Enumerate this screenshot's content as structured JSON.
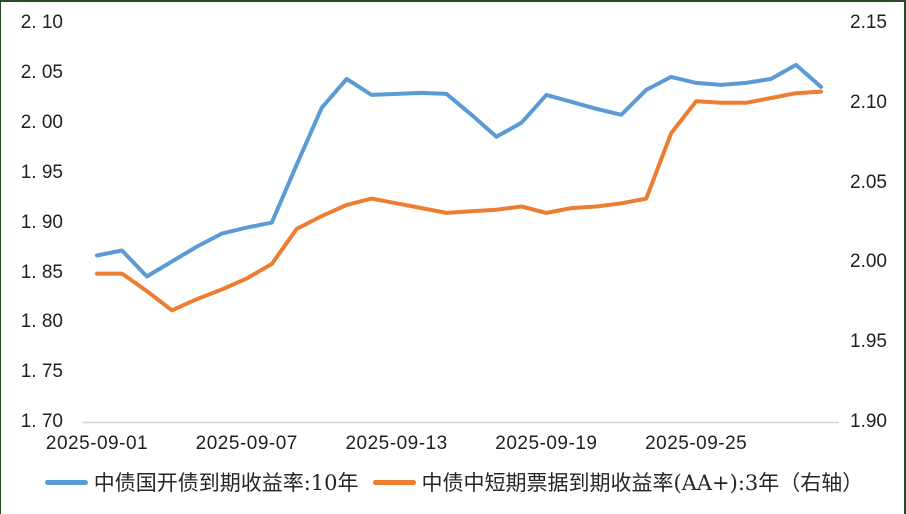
{
  "chart_data": {
    "type": "line",
    "x": [
      "2025-09-01",
      "2025-09-02",
      "2025-09-03",
      "2025-09-04",
      "2025-09-05",
      "2025-09-06",
      "2025-09-07",
      "2025-09-08",
      "2025-09-09",
      "2025-09-10",
      "2025-09-11",
      "2025-09-12",
      "2025-09-13",
      "2025-09-14",
      "2025-09-15",
      "2025-09-16",
      "2025-09-17",
      "2025-09-18",
      "2025-09-19",
      "2025-09-20",
      "2025-09-21",
      "2025-09-22",
      "2025-09-23",
      "2025-09-24",
      "2025-09-25",
      "2025-09-26",
      "2025-09-27",
      "2025-09-28",
      "2025-09-29",
      "2025-09-30"
    ],
    "series": [
      {
        "name": "中债国开债到期收益率:10年",
        "axis": "left",
        "color": "#5B9BD5",
        "values": [
          1.867,
          1.872,
          1.846,
          1.861,
          1.876,
          1.889,
          1.895,
          1.9,
          1.958,
          2.015,
          2.044,
          2.028,
          2.029,
          2.03,
          2.029,
          2.008,
          1.986,
          2.0,
          2.028,
          2.021,
          2.014,
          2.008,
          2.033,
          2.046,
          2.04,
          2.038,
          2.04,
          2.044,
          2.058,
          2.036
        ]
      },
      {
        "name": "中债中短期票据到期收益率(AA+):3年（右轴）",
        "axis": "right",
        "color": "#ED7D31",
        "values": [
          1.993,
          1.993,
          1.982,
          1.97,
          1.977,
          1.983,
          1.99,
          1.999,
          2.021,
          2.029,
          2.036,
          2.04,
          2.037,
          2.034,
          2.031,
          2.032,
          2.033,
          2.035,
          2.031,
          2.034,
          2.035,
          2.037,
          2.04,
          2.081,
          2.101,
          2.1,
          2.1,
          2.103,
          2.106,
          2.107
        ]
      }
    ],
    "left_axis": {
      "min": 1.7,
      "max": 2.1,
      "step": 0.05,
      "tick_labels": [
        "2. 10",
        "2. 05",
        "2. 00",
        "1. 95",
        "1. 90",
        "1. 85",
        "1. 80",
        "1. 75",
        "1. 70"
      ]
    },
    "right_axis": {
      "min": 1.9,
      "max": 2.15,
      "step": 0.05,
      "tick_labels": [
        "2.15",
        "2.10",
        "2.05",
        "2.00",
        "1.95",
        "1.90"
      ]
    },
    "x_tick_labels": [
      "2025-09-01",
      "2025-09-07",
      "2025-09-13",
      "2025-09-19",
      "2025-09-25"
    ],
    "title": "",
    "grid": false,
    "legend_position": "bottom"
  },
  "style": {
    "series_blue": "#5B9BD5",
    "series_orange": "#ED7D31",
    "axis_line_color": "#d6d6d6",
    "tick_text_color": "#1f1f1f",
    "border_color": "#2b482b",
    "background": "#ffffff"
  }
}
